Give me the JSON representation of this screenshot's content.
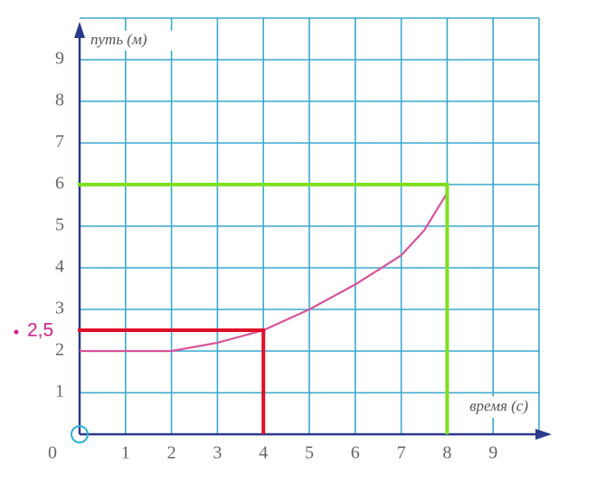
{
  "chart_data": {
    "type": "line",
    "x_label": "время (с)",
    "y_label": "путь (м)",
    "origin_label": "0",
    "x": [
      0,
      1,
      2,
      3,
      4,
      5,
      6,
      7,
      7.5,
      8
    ],
    "series": [
      {
        "color": "#d9549a",
        "values": [
          2,
          2,
          2,
          2.2,
          2.5,
          3,
          3.6,
          4.3,
          4.9,
          5.8
        ]
      }
    ],
    "xlim": [
      0,
      10
    ],
    "ylim": [
      0,
      10
    ],
    "xticks": [
      1,
      2,
      3,
      4,
      5,
      6,
      7,
      8,
      9
    ],
    "yticks": [
      1,
      2,
      3,
      4,
      5,
      6,
      7,
      8,
      9
    ],
    "grid": true,
    "grid_color": "#3aa9d0",
    "axis_color": "#2b3a8c",
    "annotations": [
      {
        "x": 4,
        "y": 2.5,
        "label": "2,5",
        "color": "#e0102a",
        "label_color": "#d0208a"
      },
      {
        "x": 8,
        "y": 6,
        "color": "#7ee020"
      }
    ]
  }
}
